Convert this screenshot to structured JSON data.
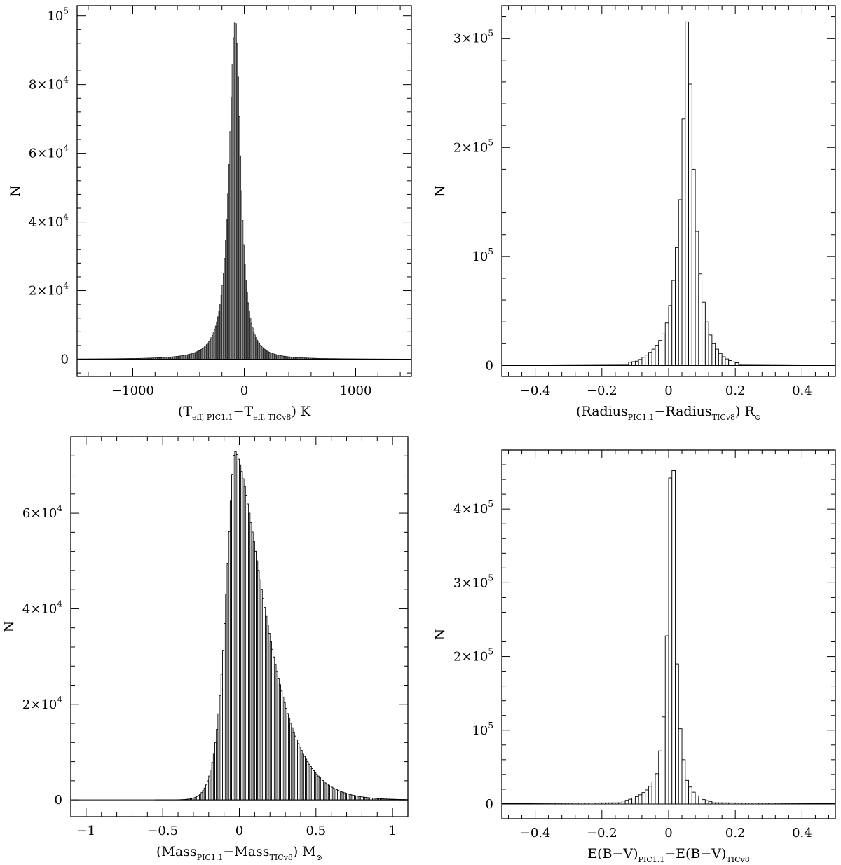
{
  "chart_data": [
    {
      "type": "bar",
      "id": "teff",
      "xlim": [
        -1500,
        1500
      ],
      "ylim": [
        -5000,
        103000
      ],
      "x_ticks": [
        {
          "value": -1000,
          "label": "−1000"
        },
        {
          "value": 0,
          "label": "0"
        },
        {
          "value": 1000,
          "label": "1000"
        }
      ],
      "y_ticks": [
        {
          "value": 0,
          "label": "0"
        },
        {
          "value": 20000,
          "label": "2×10",
          "exp": "4"
        },
        {
          "value": 40000,
          "label": "4×10",
          "exp": "4"
        },
        {
          "value": 60000,
          "label": "6×10",
          "exp": "4"
        },
        {
          "value": 80000,
          "label": "8×10",
          "exp": "4"
        },
        {
          "value": 100000,
          "label": "10",
          "exp": "5"
        }
      ],
      "ylabel": "N",
      "xlabel": {
        "parts": [
          {
            "t": "(T"
          },
          {
            "t": "eff, PIC1.1",
            "sub": true
          },
          {
            "t": "−T"
          },
          {
            "t": "eff, TICv8",
            "sub": true
          },
          {
            "t": ") K"
          }
        ]
      },
      "bin_width": 10,
      "shape": {
        "kind": "lorentz",
        "peak_x": -80,
        "peak_y": 98500,
        "gamma_left": 72,
        "gamma_right": 62,
        "power": 1.2
      },
      "style": {
        "filled": true
      }
    },
    {
      "type": "bar",
      "id": "radius",
      "xlim": [
        -0.5,
        0.5
      ],
      "ylim": [
        -10000,
        330000
      ],
      "x_ticks": [
        {
          "value": -0.4,
          "label": "−0.4"
        },
        {
          "value": -0.2,
          "label": "−0.2"
        },
        {
          "value": 0,
          "label": "0"
        },
        {
          "value": 0.2,
          "label": "0.2"
        },
        {
          "value": 0.4,
          "label": "0.4"
        }
      ],
      "y_ticks": [
        {
          "value": 0,
          "label": "0"
        },
        {
          "value": 100000,
          "label": "10",
          "exp": "5"
        },
        {
          "value": 200000,
          "label": "2×10",
          "exp": "5"
        },
        {
          "value": 300000,
          "label": "3×10",
          "exp": "5"
        }
      ],
      "ylabel": "N",
      "xlabel": {
        "parts": [
          {
            "t": "(Radius"
          },
          {
            "t": "PIC1.1",
            "sub": true
          },
          {
            "t": "−Radius"
          },
          {
            "t": "TICv8",
            "sub": true
          },
          {
            "t": ") R"
          },
          {
            "t": "⊙",
            "sub": true
          }
        ]
      },
      "bin_width": 0.01,
      "bins": [
        {
          "x": -0.12,
          "y": 3000
        },
        {
          "x": -0.11,
          "y": 3500
        },
        {
          "x": -0.1,
          "y": 4000
        },
        {
          "x": -0.09,
          "y": 5500
        },
        {
          "x": -0.08,
          "y": 7500
        },
        {
          "x": -0.07,
          "y": 9500
        },
        {
          "x": -0.06,
          "y": 12000
        },
        {
          "x": -0.05,
          "y": 15000
        },
        {
          "x": -0.04,
          "y": 18500
        },
        {
          "x": -0.03,
          "y": 23000
        },
        {
          "x": -0.02,
          "y": 29000
        },
        {
          "x": -0.01,
          "y": 39000
        },
        {
          "x": 0.0,
          "y": 55000
        },
        {
          "x": 0.01,
          "y": 78000
        },
        {
          "x": 0.02,
          "y": 108000
        },
        {
          "x": 0.03,
          "y": 152000
        },
        {
          "x": 0.04,
          "y": 226000
        },
        {
          "x": 0.05,
          "y": 315000
        },
        {
          "x": 0.06,
          "y": 258000
        },
        {
          "x": 0.07,
          "y": 180000
        },
        {
          "x": 0.08,
          "y": 123000
        },
        {
          "x": 0.09,
          "y": 84000
        },
        {
          "x": 0.1,
          "y": 58000
        },
        {
          "x": 0.11,
          "y": 40000
        },
        {
          "x": 0.12,
          "y": 28000
        },
        {
          "x": 0.13,
          "y": 20000
        },
        {
          "x": 0.14,
          "y": 15000
        },
        {
          "x": 0.15,
          "y": 11000
        },
        {
          "x": 0.16,
          "y": 8000
        },
        {
          "x": 0.17,
          "y": 6000
        },
        {
          "x": 0.18,
          "y": 4500
        },
        {
          "x": 0.19,
          "y": 3300
        },
        {
          "x": 0.2,
          "y": 2500
        }
      ],
      "tails": {
        "from": -0.5,
        "to": 0.5,
        "level": 800
      },
      "style": {
        "filled": false
      }
    },
    {
      "type": "bar",
      "id": "mass",
      "xlim": [
        -1.1,
        1.1
      ],
      "ylim": [
        -3500,
        76000
      ],
      "x_ticks": [
        {
          "value": -1,
          "label": "−1"
        },
        {
          "value": -0.5,
          "label": "−0.5"
        },
        {
          "value": 0,
          "label": "0"
        },
        {
          "value": 0.5,
          "label": "0.5"
        },
        {
          "value": 1,
          "label": "1"
        }
      ],
      "y_ticks": [
        {
          "value": 0,
          "label": "0"
        },
        {
          "value": 20000,
          "label": "2×10",
          "exp": "4"
        },
        {
          "value": 40000,
          "label": "4×10",
          "exp": "4"
        },
        {
          "value": 60000,
          "label": "6×10",
          "exp": "4"
        }
      ],
      "ylabel": "N",
      "xlabel": {
        "parts": [
          {
            "t": "(Mass"
          },
          {
            "t": "PIC1.1",
            "sub": true
          },
          {
            "t": "−Mass"
          },
          {
            "t": "TICv8",
            "sub": true
          },
          {
            "t": ") M"
          },
          {
            "t": "⊙",
            "sub": true
          }
        ]
      },
      "bin_width": 0.01,
      "shape": {
        "kind": "skew",
        "peak_x": -0.03,
        "peak_y": 73000,
        "w_left": 0.08,
        "w_right": 0.26,
        "power_left": 1.3,
        "power_right": 1.0
      },
      "style": {
        "filled": false
      }
    },
    {
      "type": "bar",
      "id": "ebv",
      "xlim": [
        -0.5,
        0.5
      ],
      "ylim": [
        -20000,
        480000
      ],
      "x_ticks": [
        {
          "value": -0.4,
          "label": "−0.4"
        },
        {
          "value": -0.2,
          "label": "−0.2"
        },
        {
          "value": 0,
          "label": "0"
        },
        {
          "value": 0.2,
          "label": "0.2"
        },
        {
          "value": 0.4,
          "label": "0.4"
        }
      ],
      "y_ticks": [
        {
          "value": 0,
          "label": "0"
        },
        {
          "value": 100000,
          "label": "10",
          "exp": "5"
        },
        {
          "value": 200000,
          "label": "2×10",
          "exp": "5"
        },
        {
          "value": 300000,
          "label": "3×10",
          "exp": "5"
        },
        {
          "value": 400000,
          "label": "4×10",
          "exp": "5"
        }
      ],
      "ylabel": "N",
      "xlabel": {
        "parts": [
          {
            "t": "E(B−V)"
          },
          {
            "t": "PIC1.1",
            "sub": true
          },
          {
            "t": "−E(B−V)"
          },
          {
            "t": "TICv8",
            "sub": true
          }
        ]
      },
      "bin_width": 0.01,
      "bins": [
        {
          "x": -0.14,
          "y": 4000
        },
        {
          "x": -0.13,
          "y": 5000
        },
        {
          "x": -0.12,
          "y": 6500
        },
        {
          "x": -0.11,
          "y": 8000
        },
        {
          "x": -0.1,
          "y": 10000
        },
        {
          "x": -0.09,
          "y": 12500
        },
        {
          "x": -0.08,
          "y": 15500
        },
        {
          "x": -0.07,
          "y": 19000
        },
        {
          "x": -0.06,
          "y": 24000
        },
        {
          "x": -0.05,
          "y": 30000
        },
        {
          "x": -0.04,
          "y": 41000
        },
        {
          "x": -0.03,
          "y": 72000
        },
        {
          "x": -0.02,
          "y": 118000
        },
        {
          "x": -0.01,
          "y": 228000
        },
        {
          "x": 0.0,
          "y": 442000
        },
        {
          "x": 0.01,
          "y": 452000
        },
        {
          "x": 0.02,
          "y": 190000
        },
        {
          "x": 0.03,
          "y": 102000
        },
        {
          "x": 0.04,
          "y": 60000
        },
        {
          "x": 0.05,
          "y": 32000
        },
        {
          "x": 0.06,
          "y": 23000
        },
        {
          "x": 0.07,
          "y": 16000
        },
        {
          "x": 0.08,
          "y": 11000
        },
        {
          "x": 0.09,
          "y": 8000
        },
        {
          "x": 0.1,
          "y": 6000
        },
        {
          "x": 0.11,
          "y": 4500
        },
        {
          "x": 0.12,
          "y": 3500
        }
      ],
      "tails": {
        "from": -0.5,
        "to": 0.5,
        "level": 1500
      },
      "style": {
        "filled": false
      }
    }
  ]
}
